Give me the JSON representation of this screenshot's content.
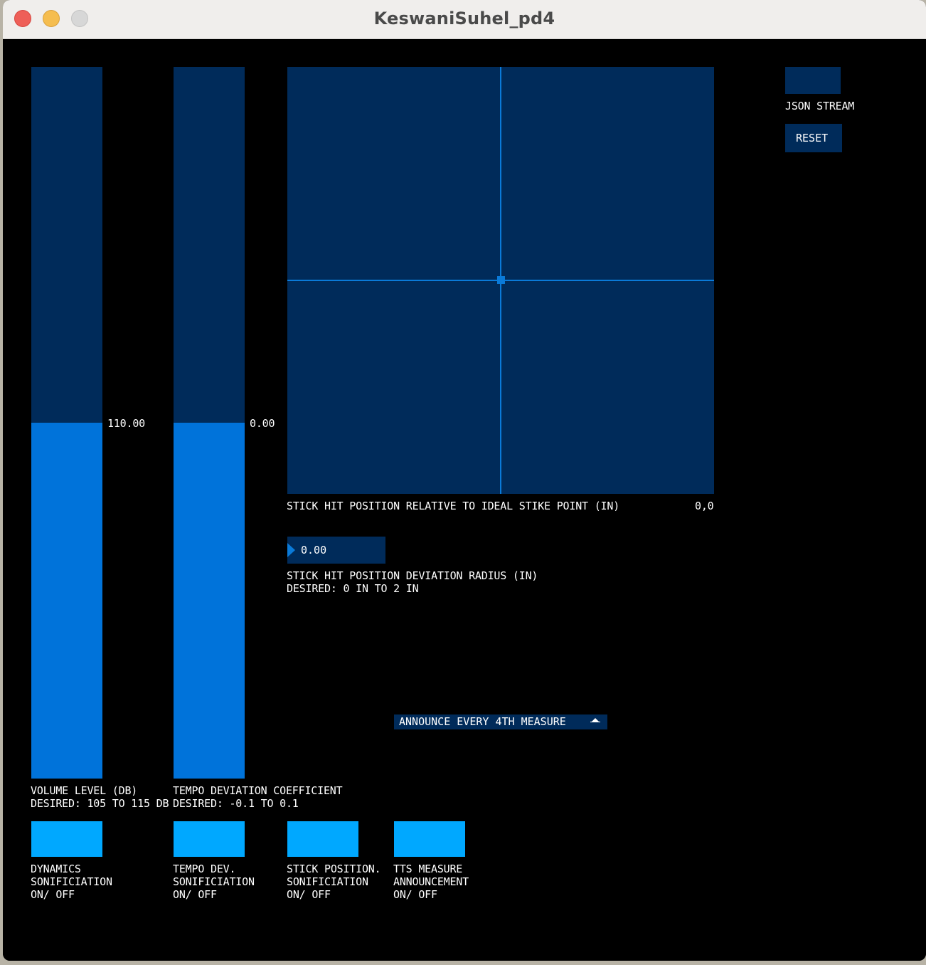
{
  "window": {
    "title": "KeswaniSuhel_pd4"
  },
  "volume": {
    "label_line1": "VOLUME LEVEL (DB)",
    "label_line2": "DESIRED: 105 TO 115 DB",
    "value_text": "110.00",
    "fill_fraction": 0.5
  },
  "tempo": {
    "label_line1": "TEMPO DEVIATION COEFFICIENT",
    "label_line2": "DESIRED: -0.1 TO 0.1",
    "value_text": "0.00",
    "fill_fraction": 0.5
  },
  "stick_pad": {
    "label": "STICK HIT POSITION RELATIVE TO IDEAL STIKE POINT (IN)",
    "value_text": "0,0",
    "x": 0,
    "y": 0
  },
  "deviation": {
    "value": "0.00",
    "label_line1": "STICK HIT POSITION DEVIATION RADIUS (IN)",
    "label_line2": "DESIRED: 0 IN TO 2 IN"
  },
  "announce_dropdown": {
    "selected": "ANNOUNCE EVERY 4TH MEASURE"
  },
  "json_stream": {
    "label": "JSON STREAM"
  },
  "reset_button": {
    "label": "RESET"
  },
  "toggles": [
    {
      "line1": "DYNAMICS",
      "line2": "SONIFICIATION",
      "line3": "ON/ OFF"
    },
    {
      "line1": "TEMPO DEV.",
      "line2": "SONIFICIATION",
      "line3": "ON/ OFF"
    },
    {
      "line1": "STICK POSITION.",
      "line2": "SONIFICIATION",
      "line3": "ON/ OFF"
    },
    {
      "line1": "TTS MEASURE",
      "line2": "ANNOUNCEMENT",
      "line3": "ON/ OFF"
    }
  ],
  "colors": {
    "control_bg": "#002b5a",
    "fill": "#0073da",
    "toggle_active": "#00a8ff",
    "crosshair": "#0a7ad8"
  }
}
